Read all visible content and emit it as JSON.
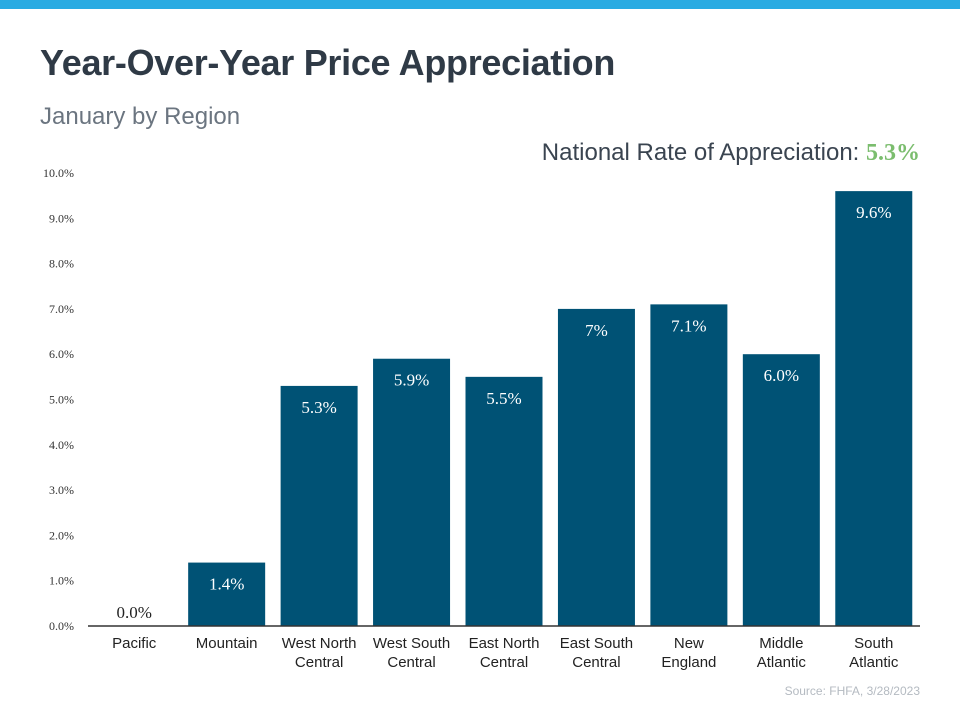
{
  "title": "Year-Over-Year Price Appreciation",
  "subtitle": "January by Region",
  "national": {
    "label": "National Rate of Appreciation:",
    "value": "5.3%"
  },
  "source": "Source: FHFA, 3/28/2023",
  "colors": {
    "bar": "#005275",
    "accent": "#7bbd6e",
    "stripe": "#29abe2"
  },
  "chart_data": {
    "type": "bar",
    "categories": [
      [
        "Pacific"
      ],
      [
        "Mountain"
      ],
      [
        "West North",
        "Central"
      ],
      [
        "West South",
        "Central"
      ],
      [
        "East North",
        "Central"
      ],
      [
        "East South",
        "Central"
      ],
      [
        "New",
        "England"
      ],
      [
        "Middle",
        "Atlantic"
      ],
      [
        "South",
        "Atlantic"
      ]
    ],
    "values": [
      0.0,
      1.4,
      5.3,
      5.9,
      5.5,
      7.0,
      7.1,
      6.0,
      9.6
    ],
    "data_labels": [
      "0.0%",
      "1.4%",
      "5.3%",
      "5.9%",
      "5.5%",
      "7%",
      "7.1%",
      "6.0%",
      "9.6%"
    ],
    "ylim": [
      0,
      10
    ],
    "yticks": [
      "0.0%",
      "1.0%",
      "2.0%",
      "3.0%",
      "4.0%",
      "5.0%",
      "6.0%",
      "7.0%",
      "8.0%",
      "9.0%",
      "10.0%"
    ],
    "grid": false,
    "xlabel": "",
    "ylabel": ""
  }
}
